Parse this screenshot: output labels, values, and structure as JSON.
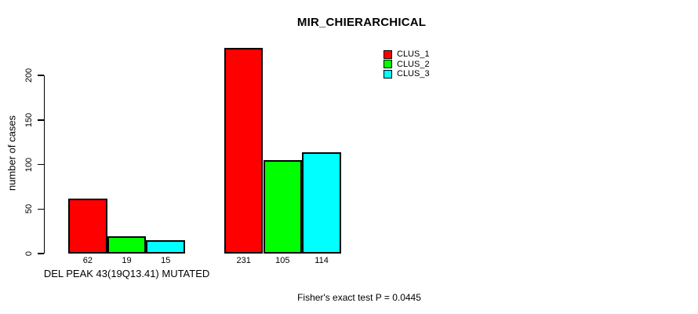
{
  "chart_data": {
    "type": "bar",
    "title": "MIR_CHIERARCHICAL",
    "xlabel": "",
    "ylabel": "number of cases",
    "categories": [
      "DEL PEAK 43(19Q13.41) MUTATED",
      ""
    ],
    "series": [
      {
        "name": "CLUS_1",
        "color": "#ff0000",
        "values": [
          62,
          231
        ]
      },
      {
        "name": "CLUS_2",
        "color": "#00ff00",
        "values": [
          19,
          105
        ]
      },
      {
        "name": "CLUS_3",
        "color": "#00ffff",
        "values": [
          15,
          114
        ]
      }
    ],
    "yticks": [
      0,
      50,
      100,
      150,
      200
    ],
    "ylim": [
      0,
      240
    ],
    "grid": false,
    "bar_value_labels_shown": true,
    "legend_position": "top-right",
    "annotation": "Fisher's exact test P = 0.0445"
  },
  "colors": {
    "background": "#ffffff",
    "axis": "#000000",
    "text": "#000000",
    "clus_1": "#ff0000",
    "clus_2": "#00ff00",
    "clus_3": "#00ffff"
  }
}
